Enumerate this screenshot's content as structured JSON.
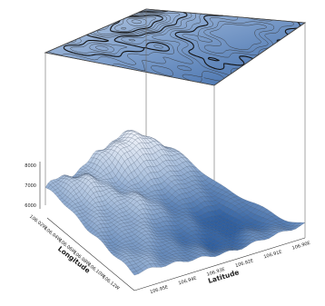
{
  "chart_data": {
    "type": "surface",
    "title": "",
    "components": [
      "3d-wireframe-surface",
      "contour-projection-plane"
    ],
    "z_axis": {
      "label": "",
      "ticks": [
        "8000",
        "7000",
        "6000"
      ],
      "range": [
        5800,
        8300
      ]
    },
    "x_axis": {
      "label": "Longitude",
      "ticks": [
        "106.02W",
        "106.04W",
        "106.06W",
        "106.08W",
        "106.10W",
        "106.12W"
      ]
    },
    "y_axis": {
      "label": "Latitude",
      "ticks": [
        "106.95E",
        "106.94E",
        "106.93E",
        "106.92E",
        "106.91E",
        "106.90E"
      ]
    },
    "colors": {
      "high": "#f4f6fb",
      "mid": "#a9bfdc",
      "low": "#2f5fa0",
      "contour_major": "#111111",
      "contour_minor": "#333333",
      "frame": "#555555"
    },
    "grid": false,
    "legend": "none"
  }
}
